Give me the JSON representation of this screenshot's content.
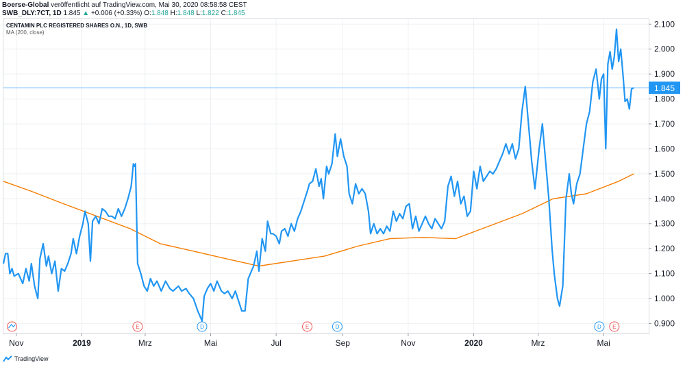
{
  "header": {
    "publisher": "Boerse-Global",
    "published": "veröffentlicht auf TradingView.com, Mai 30, 2020 08:58:58 CEST",
    "symbol": "SWB_DLY:7CT, 1D",
    "last": "1.845",
    "change_arrow": "▲",
    "change": "+0.006 (+0.33%)",
    "o_label": "O:",
    "o": "1.848",
    "h_label": "H:",
    "h": "1.848",
    "l_label": "L:",
    "l": "1.822",
    "c_label": "C:",
    "c": "1.845"
  },
  "legend": {
    "title": "CENTAMIN PLC REGISTERED SHARES O.N., 1D, SWB",
    "ma": "MA (200, close)"
  },
  "footer": {
    "brand": "TradingView",
    "brand_icon": "tradingview-logo-icon"
  },
  "colors": {
    "price": "#2196f3",
    "ma": "#f57c00",
    "grid": "#eef0f3",
    "last_badge": "#2196f3"
  },
  "chart_data": {
    "type": "line",
    "ylim": [
      0.86,
      2.12
    ],
    "x_range": [
      "2018-10-20",
      "2020-06-12"
    ],
    "y_ticks": [
      "2.100",
      "2.000",
      "1.900",
      "1.800",
      "1.700",
      "1.600",
      "1.500",
      "1.400",
      "1.300",
      "1.200",
      "1.100",
      "1.000",
      "0.900"
    ],
    "x_ticks": [
      {
        "date": "2018-11-01",
        "label": "Nov",
        "bold": false
      },
      {
        "date": "2019-01-01",
        "label": "2019",
        "bold": true
      },
      {
        "date": "2019-03-01",
        "label": "Mrz",
        "bold": false
      },
      {
        "date": "2019-05-01",
        "label": "Mai",
        "bold": false
      },
      {
        "date": "2019-07-01",
        "label": "Jul",
        "bold": false
      },
      {
        "date": "2019-09-01",
        "label": "Sep",
        "bold": false
      },
      {
        "date": "2019-11-01",
        "label": "Nov",
        "bold": false
      },
      {
        "date": "2020-01-01",
        "label": "2020",
        "bold": true
      },
      {
        "date": "2020-03-01",
        "label": "Mrz",
        "bold": false
      },
      {
        "date": "2020-05-01",
        "label": "Mai",
        "bold": false
      }
    ],
    "last_value": 1.845,
    "last_label": "1.845",
    "events": [
      {
        "date": "2018-10-28",
        "label": "",
        "kind": "split"
      },
      {
        "date": "2019-02-22",
        "label": "E",
        "kind": "earnings"
      },
      {
        "date": "2019-04-23",
        "label": "D",
        "kind": "dividend"
      },
      {
        "date": "2019-07-30",
        "label": "E",
        "kind": "earnings"
      },
      {
        "date": "2019-08-27",
        "label": "D",
        "kind": "dividend"
      },
      {
        "date": "2020-04-27",
        "label": "D",
        "kind": "dividend"
      },
      {
        "date": "2020-05-11",
        "label": "E",
        "kind": "earnings"
      }
    ],
    "series": [
      {
        "key": "price",
        "points": [
          [
            "2018-10-20",
            1.14
          ],
          [
            "2018-10-22",
            1.18
          ],
          [
            "2018-10-24",
            1.18
          ],
          [
            "2018-10-26",
            1.1
          ],
          [
            "2018-10-28",
            1.12
          ],
          [
            "2018-10-30",
            1.09
          ],
          [
            "2018-11-03",
            1.1
          ],
          [
            "2018-11-07",
            1.06
          ],
          [
            "2018-11-10",
            1.12
          ],
          [
            "2018-11-13",
            1.07
          ],
          [
            "2018-11-15",
            1.14
          ],
          [
            "2018-11-18",
            1.05
          ],
          [
            "2018-11-21",
            1.0
          ],
          [
            "2018-11-23",
            1.16
          ],
          [
            "2018-11-26",
            1.22
          ],
          [
            "2018-11-29",
            1.13
          ],
          [
            "2018-12-01",
            1.17
          ],
          [
            "2018-12-04",
            1.1
          ],
          [
            "2018-12-07",
            1.15
          ],
          [
            "2018-12-10",
            1.03
          ],
          [
            "2018-12-13",
            1.12
          ],
          [
            "2018-12-16",
            1.11
          ],
          [
            "2018-12-19",
            1.14
          ],
          [
            "2018-12-22",
            1.18
          ],
          [
            "2018-12-24",
            1.24
          ],
          [
            "2018-12-27",
            1.18
          ],
          [
            "2018-12-30",
            1.25
          ],
          [
            "2019-01-02",
            1.3
          ],
          [
            "2019-01-04",
            1.35
          ],
          [
            "2019-01-07",
            1.3
          ],
          [
            "2019-01-09",
            1.15
          ],
          [
            "2019-01-11",
            1.31
          ],
          [
            "2019-01-14",
            1.33
          ],
          [
            "2019-01-17",
            1.3
          ],
          [
            "2019-01-20",
            1.36
          ],
          [
            "2019-01-23",
            1.35
          ],
          [
            "2019-01-26",
            1.33
          ],
          [
            "2019-01-29",
            1.33
          ],
          [
            "2019-02-01",
            1.32
          ],
          [
            "2019-02-04",
            1.36
          ],
          [
            "2019-02-07",
            1.33
          ],
          [
            "2019-02-10",
            1.36
          ],
          [
            "2019-02-13",
            1.4
          ],
          [
            "2019-02-16",
            1.45
          ],
          [
            "2019-02-18",
            1.54
          ],
          [
            "2019-02-19",
            1.53
          ],
          [
            "2019-02-20",
            1.54
          ],
          [
            "2019-02-22",
            1.14
          ],
          [
            "2019-02-25",
            1.1
          ],
          [
            "2019-02-28",
            1.05
          ],
          [
            "2019-03-03",
            1.03
          ],
          [
            "2019-03-06",
            1.08
          ],
          [
            "2019-03-09",
            1.05
          ],
          [
            "2019-03-12",
            1.07
          ],
          [
            "2019-03-16",
            1.03
          ],
          [
            "2019-03-20",
            1.07
          ],
          [
            "2019-03-24",
            1.04
          ],
          [
            "2019-03-27",
            1.03
          ],
          [
            "2019-04-01",
            1.05
          ],
          [
            "2019-04-04",
            1.03
          ],
          [
            "2019-04-08",
            1.04
          ],
          [
            "2019-04-11",
            1.02
          ],
          [
            "2019-04-15",
            1.0
          ],
          [
            "2019-04-19",
            0.95
          ],
          [
            "2019-04-23",
            0.91
          ],
          [
            "2019-04-25",
            1.01
          ],
          [
            "2019-04-28",
            1.04
          ],
          [
            "2019-05-01",
            1.06
          ],
          [
            "2019-05-04",
            1.03
          ],
          [
            "2019-05-07",
            1.07
          ],
          [
            "2019-05-11",
            1.03
          ],
          [
            "2019-05-14",
            1.02
          ],
          [
            "2019-05-17",
            1.03
          ],
          [
            "2019-05-21",
            1.0
          ],
          [
            "2019-05-24",
            1.03
          ],
          [
            "2019-05-27",
            0.99
          ],
          [
            "2019-05-30",
            0.95
          ],
          [
            "2019-06-02",
            0.95
          ],
          [
            "2019-06-05",
            1.08
          ],
          [
            "2019-06-07",
            1.1
          ],
          [
            "2019-06-10",
            1.13
          ],
          [
            "2019-06-13",
            1.19
          ],
          [
            "2019-06-15",
            1.11
          ],
          [
            "2019-06-18",
            1.24
          ],
          [
            "2019-06-21",
            1.19
          ],
          [
            "2019-06-23",
            1.31
          ],
          [
            "2019-06-26",
            1.26
          ],
          [
            "2019-06-28",
            1.26
          ],
          [
            "2019-07-01",
            1.25
          ],
          [
            "2019-07-04",
            1.22
          ],
          [
            "2019-07-06",
            1.27
          ],
          [
            "2019-07-09",
            1.28
          ],
          [
            "2019-07-12",
            1.25
          ],
          [
            "2019-07-15",
            1.3
          ],
          [
            "2019-07-18",
            1.27
          ],
          [
            "2019-07-21",
            1.32
          ],
          [
            "2019-07-24",
            1.35
          ],
          [
            "2019-07-27",
            1.39
          ],
          [
            "2019-07-30",
            1.43
          ],
          [
            "2019-08-01",
            1.46
          ],
          [
            "2019-08-04",
            1.47
          ],
          [
            "2019-08-07",
            1.52
          ],
          [
            "2019-08-10",
            1.45
          ],
          [
            "2019-08-12",
            1.48
          ],
          [
            "2019-08-14",
            1.4
          ],
          [
            "2019-08-17",
            1.53
          ],
          [
            "2019-08-19",
            1.5
          ],
          [
            "2019-08-22",
            1.54
          ],
          [
            "2019-08-25",
            1.66
          ],
          [
            "2019-08-27",
            1.57
          ],
          [
            "2019-08-30",
            1.64
          ],
          [
            "2019-09-02",
            1.57
          ],
          [
            "2019-09-05",
            1.53
          ],
          [
            "2019-09-07",
            1.42
          ],
          [
            "2019-09-10",
            1.38
          ],
          [
            "2019-09-13",
            1.46
          ],
          [
            "2019-09-16",
            1.42
          ],
          [
            "2019-09-19",
            1.44
          ],
          [
            "2019-09-22",
            1.42
          ],
          [
            "2019-09-25",
            1.35
          ],
          [
            "2019-09-27",
            1.26
          ],
          [
            "2019-09-30",
            1.3
          ],
          [
            "2019-10-03",
            1.26
          ],
          [
            "2019-10-06",
            1.28
          ],
          [
            "2019-10-09",
            1.26
          ],
          [
            "2019-10-12",
            1.29
          ],
          [
            "2019-10-15",
            1.27
          ],
          [
            "2019-10-18",
            1.35
          ],
          [
            "2019-10-21",
            1.31
          ],
          [
            "2019-10-24",
            1.34
          ],
          [
            "2019-10-27",
            1.32
          ],
          [
            "2019-10-30",
            1.37
          ],
          [
            "2019-11-02",
            1.38
          ],
          [
            "2019-11-05",
            1.28
          ],
          [
            "2019-11-08",
            1.33
          ],
          [
            "2019-11-11",
            1.27
          ],
          [
            "2019-11-14",
            1.3
          ],
          [
            "2019-11-17",
            1.33
          ],
          [
            "2019-11-20",
            1.3
          ],
          [
            "2019-11-23",
            1.28
          ],
          [
            "2019-11-26",
            1.32
          ],
          [
            "2019-11-29",
            1.3
          ],
          [
            "2019-12-02",
            1.28
          ],
          [
            "2019-12-05",
            1.31
          ],
          [
            "2019-12-08",
            1.45
          ],
          [
            "2019-12-11",
            1.49
          ],
          [
            "2019-12-14",
            1.41
          ],
          [
            "2019-12-17",
            1.47
          ],
          [
            "2019-12-20",
            1.38
          ],
          [
            "2019-12-23",
            1.41
          ],
          [
            "2019-12-26",
            1.33
          ],
          [
            "2019-12-29",
            1.35
          ],
          [
            "2020-01-01",
            1.51
          ],
          [
            "2020-01-04",
            1.44
          ],
          [
            "2020-01-07",
            1.53
          ],
          [
            "2020-01-10",
            1.47
          ],
          [
            "2020-01-13",
            1.49
          ],
          [
            "2020-01-16",
            1.51
          ],
          [
            "2020-01-19",
            1.5
          ],
          [
            "2020-01-22",
            1.52
          ],
          [
            "2020-01-25",
            1.55
          ],
          [
            "2020-01-28",
            1.58
          ],
          [
            "2020-01-31",
            1.62
          ],
          [
            "2020-02-03",
            1.58
          ],
          [
            "2020-02-06",
            1.62
          ],
          [
            "2020-02-09",
            1.56
          ],
          [
            "2020-02-12",
            1.6
          ],
          [
            "2020-02-15",
            1.75
          ],
          [
            "2020-02-18",
            1.85
          ],
          [
            "2020-02-21",
            1.7
          ],
          [
            "2020-02-24",
            1.55
          ],
          [
            "2020-02-27",
            1.44
          ],
          [
            "2020-03-02",
            1.6
          ],
          [
            "2020-03-05",
            1.7
          ],
          [
            "2020-03-08",
            1.55
          ],
          [
            "2020-03-11",
            1.4
          ],
          [
            "2020-03-14",
            1.2
          ],
          [
            "2020-03-16",
            1.1
          ],
          [
            "2020-03-19",
            1.0
          ],
          [
            "2020-03-21",
            0.97
          ],
          [
            "2020-03-24",
            1.05
          ],
          [
            "2020-03-27",
            1.4
          ],
          [
            "2020-03-30",
            1.5
          ],
          [
            "2020-04-01",
            1.42
          ],
          [
            "2020-04-03",
            1.38
          ],
          [
            "2020-04-06",
            1.46
          ],
          [
            "2020-04-09",
            1.5
          ],
          [
            "2020-04-12",
            1.6
          ],
          [
            "2020-04-15",
            1.7
          ],
          [
            "2020-04-18",
            1.75
          ],
          [
            "2020-04-21",
            1.87
          ],
          [
            "2020-04-24",
            1.92
          ],
          [
            "2020-04-27",
            1.8
          ],
          [
            "2020-04-29",
            1.88
          ],
          [
            "2020-05-01",
            1.9
          ],
          [
            "2020-05-03",
            1.6
          ],
          [
            "2020-05-05",
            1.94
          ],
          [
            "2020-05-07",
            1.99
          ],
          [
            "2020-05-09",
            1.92
          ],
          [
            "2020-05-11",
            1.97
          ],
          [
            "2020-05-13",
            2.08
          ],
          [
            "2020-05-15",
            1.95
          ],
          [
            "2020-05-17",
            2.0
          ],
          [
            "2020-05-19",
            1.9
          ],
          [
            "2020-05-21",
            1.79
          ],
          [
            "2020-05-23",
            1.8
          ],
          [
            "2020-05-25",
            1.76
          ],
          [
            "2020-05-27",
            1.84
          ],
          [
            "2020-05-29",
            1.845
          ]
        ]
      },
      {
        "key": "ma",
        "points": [
          [
            "2018-10-20",
            1.47
          ],
          [
            "2018-11-15",
            1.43
          ],
          [
            "2018-12-15",
            1.38
          ],
          [
            "2019-01-15",
            1.33
          ],
          [
            "2019-02-15",
            1.28
          ],
          [
            "2019-03-15",
            1.22
          ],
          [
            "2019-04-15",
            1.19
          ],
          [
            "2019-05-15",
            1.16
          ],
          [
            "2019-06-15",
            1.13
          ],
          [
            "2019-07-15",
            1.15
          ],
          [
            "2019-08-15",
            1.17
          ],
          [
            "2019-09-15",
            1.21
          ],
          [
            "2019-10-15",
            1.24
          ],
          [
            "2019-11-15",
            1.245
          ],
          [
            "2019-12-15",
            1.24
          ],
          [
            "2020-01-15",
            1.29
          ],
          [
            "2020-02-15",
            1.34
          ],
          [
            "2020-03-15",
            1.4
          ],
          [
            "2020-04-15",
            1.42
          ],
          [
            "2020-05-15",
            1.47
          ],
          [
            "2020-05-29",
            1.5
          ]
        ]
      }
    ]
  }
}
